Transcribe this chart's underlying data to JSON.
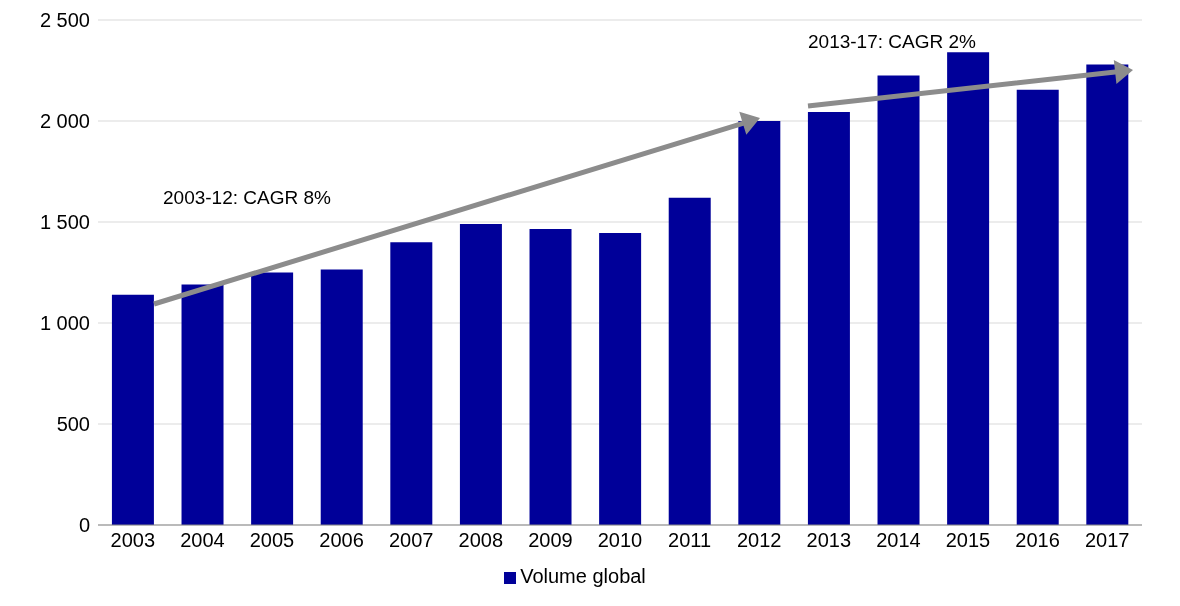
{
  "chart_data": {
    "type": "bar",
    "categories": [
      "2003",
      "2004",
      "2005",
      "2006",
      "2007",
      "2008",
      "2009",
      "2010",
      "2011",
      "2012",
      "2013",
      "2014",
      "2015",
      "2016",
      "2017"
    ],
    "series": [
      {
        "name": "Volume global",
        "color": "#000099",
        "values": [
          1140,
          1190,
          1250,
          1265,
          1400,
          1490,
          1465,
          1445,
          1620,
          2000,
          2045,
          2225,
          2340,
          2155,
          2280
        ]
      }
    ],
    "ylim": [
      0,
      2500
    ],
    "yticks": [
      0,
      500,
      {
        "value": 1000,
        "label": "1 000"
      },
      {
        "value": 1500,
        "label": "1 500"
      },
      {
        "value": 2000,
        "label": "2 000"
      },
      {
        "value": 2500,
        "label": "2 500"
      }
    ],
    "grid": "y",
    "legend": "bottom",
    "annotations": [
      "2003-12: CAGR 8%",
      "2013-17: CAGR 2%"
    ]
  }
}
